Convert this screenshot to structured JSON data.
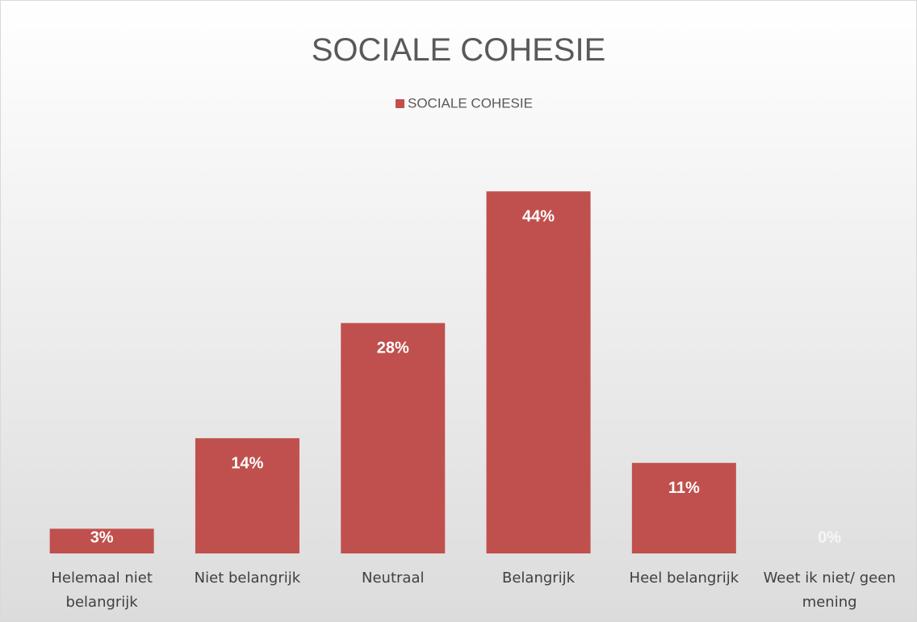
{
  "chart_data": {
    "type": "bar",
    "title": "SOCIALE COHESIE",
    "categories": [
      "Helemaal niet belangrijk",
      "Niet belangrijk",
      "Neutraal",
      "Belangrijk",
      "Heel belangrijk",
      "Weet ik niet/ geen mening"
    ],
    "series": [
      {
        "name": "SOCIALE COHESIE",
        "color": "#c0504d",
        "values": [
          3,
          14,
          28,
          44,
          11,
          0
        ],
        "value_labels": [
          "3%",
          "14%",
          "28%",
          "44%",
          "11%",
          "0%"
        ]
      }
    ]
  }
}
